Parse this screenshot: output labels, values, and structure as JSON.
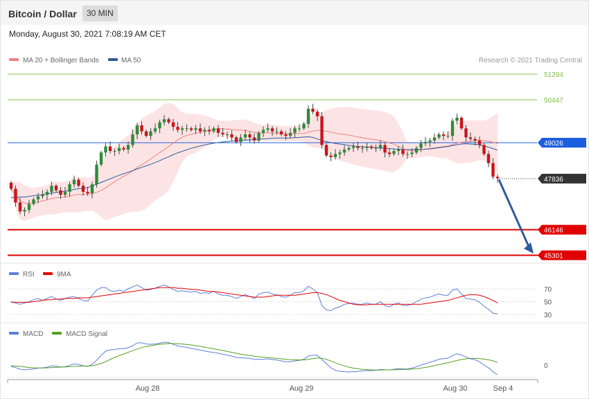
{
  "header": {
    "title": "Bitcoin / Dollar",
    "timeframe": "30 MIN",
    "datetime": "Monday, August 30, 2021 7:08:19 AM CET",
    "copyright": "Research © 2021 Trading Central"
  },
  "legends": {
    "price": [
      {
        "label": "MA 20 + Bollinger Bands",
        "color": "#f08080"
      },
      {
        "label": "MA 50",
        "color": "#2e5a9b"
      }
    ],
    "rsi": [
      {
        "label": "RSI",
        "color": "#5b7fd8"
      },
      {
        "label": "9MA",
        "color": "#e00000"
      }
    ],
    "macd": [
      {
        "label": "MACD",
        "color": "#5b7fd8"
      },
      {
        "label": "MACD Signal",
        "color": "#55a020"
      }
    ]
  },
  "chart_data": {
    "type": "candlestick",
    "price_levels": [
      {
        "label": "51294",
        "value": 51294,
        "style": "target",
        "color": "#86c04a"
      },
      {
        "label": "50447",
        "value": 50447,
        "style": "target",
        "color": "#86c04a"
      },
      {
        "label": "49026",
        "value": 49026,
        "style": "pivot",
        "color": "#1a5fe0"
      },
      {
        "label": "47836",
        "value": 47836,
        "style": "last",
        "color": "#333333"
      },
      {
        "label": "46146",
        "value": 46146,
        "style": "support",
        "color": "#e00000"
      },
      {
        "label": "45301",
        "value": 45301,
        "style": "support",
        "color": "#e00000"
      }
    ],
    "x_ticks": [
      "Aug 28",
      "Aug 29",
      "Aug 30",
      "Sep 4"
    ],
    "rsi_ticks": [
      70,
      50,
      30
    ],
    "macd_ticks": [
      0
    ],
    "close": [
      47500,
      47050,
      46750,
      46800,
      47000,
      47150,
      47250,
      47300,
      47400,
      47600,
      47450,
      47300,
      47400,
      47650,
      47800,
      47600,
      47400,
      47350,
      47650,
      48300,
      48700,
      48900,
      48750,
      48750,
      48850,
      48800,
      48950,
      49300,
      49600,
      49400,
      49250,
      49400,
      49500,
      49700,
      49800,
      49700,
      49550,
      49450,
      49500,
      49500,
      49450,
      49500,
      49400,
      49450,
      49400,
      49500,
      49350,
      49300,
      49300,
      49200,
      49050,
      49200,
      49300,
      49200,
      49100,
      49350,
      49450,
      49500,
      49400,
      49400,
      49300,
      49250,
      49350,
      49500,
      49500,
      49650,
      50150,
      50050,
      49900,
      48950,
      48600,
      48550,
      48650,
      48700,
      48800,
      48850,
      48900,
      48850,
      48850,
      48900,
      48850,
      48850,
      48950,
      48700,
      48650,
      48750,
      48800,
      48650,
      48650,
      48700,
      48850,
      49000,
      49050,
      49100,
      49200,
      49300,
      49250,
      49250,
      49750,
      49850,
      49500,
      49200,
      49150,
      49100,
      48950,
      48650,
      48350,
      47900,
      47850
    ],
    "ma50": [
      47200,
      47220,
      47230,
      47230,
      47250,
      47270,
      47290,
      47310,
      47330,
      47360,
      47380,
      47400,
      47420,
      47450,
      47480,
      47500,
      47510,
      47540,
      47590,
      47650,
      47710,
      47770,
      47830,
      47890,
      47950,
      48000,
      48050,
      48100,
      48160,
      48210,
      48260,
      48310,
      48370,
      48430,
      48500,
      48560,
      48630,
      48690,
      48740,
      48790,
      48840,
      48880,
      48920,
      48950,
      48980,
      49010,
      49030,
      49050,
      49060,
      49080,
      49090,
      49100,
      49110,
      49120,
      49130,
      49140,
      49150,
      49160,
      49170,
      49180,
      49180,
      49180,
      49180,
      49190,
      49200,
      49210,
      49220,
      49200,
      49150,
      49100,
      49060,
      49030,
      49000,
      48980,
      48960,
      48940,
      48920,
      48900,
      48890,
      48880,
      48870,
      48860,
      48850,
      48840,
      48830,
      48820,
      48810,
      48800,
      48800,
      48800,
      48800,
      48800,
      48810,
      48820,
      48840,
      48860,
      48880,
      48900,
      48930,
      48960,
      48980,
      48990,
      48980,
      48970,
      48950,
      48920,
      48880,
      48830,
      48780
    ],
    "rsi": [
      50,
      48,
      46,
      48,
      50,
      53,
      55,
      52,
      55,
      58,
      54,
      52,
      55,
      57,
      58,
      55,
      52,
      51,
      60,
      68,
      72,
      72,
      67,
      66,
      68,
      66,
      70,
      73,
      76,
      72,
      68,
      69,
      71,
      74,
      76,
      73,
      69,
      66,
      67,
      66,
      65,
      66,
      63,
      64,
      63,
      66,
      62,
      60,
      60,
      58,
      55,
      58,
      61,
      58,
      55,
      62,
      64,
      65,
      62,
      61,
      58,
      57,
      60,
      64,
      64,
      67,
      74,
      70,
      64,
      44,
      37,
      36,
      40,
      42,
      46,
      47,
      48,
      46,
      46,
      48,
      46,
      46,
      50,
      44,
      42,
      46,
      48,
      44,
      44,
      46,
      50,
      54,
      56,
      57,
      60,
      62,
      60,
      60,
      68,
      70,
      62,
      55,
      54,
      53,
      49,
      43,
      38,
      32,
      31
    ],
    "rsi_ma": [
      49,
      49,
      49,
      49,
      49,
      50,
      51,
      52,
      53,
      53,
      54,
      54,
      55,
      55,
      55,
      56,
      56,
      56,
      57,
      58,
      59,
      60,
      61,
      62,
      63,
      64,
      65,
      66,
      67,
      68,
      69,
      70,
      71,
      72,
      72,
      72,
      72,
      71,
      71,
      70,
      69,
      69,
      68,
      67,
      66,
      66,
      65,
      64,
      63,
      62,
      61,
      60,
      59,
      58,
      57,
      57,
      57,
      58,
      59,
      60,
      60,
      60,
      60,
      60,
      61,
      62,
      63,
      64,
      64,
      63,
      61,
      58,
      55,
      52,
      50,
      48,
      46,
      45,
      45,
      45,
      46,
      46,
      46,
      46,
      46,
      46,
      46,
      46,
      46,
      46,
      46,
      46,
      47,
      48,
      49,
      50,
      51,
      52,
      54,
      56,
      58,
      60,
      61,
      61,
      60,
      58,
      55,
      52,
      48
    ],
    "macd": [
      -10,
      -18,
      -30,
      -35,
      -32,
      -28,
      -22,
      -20,
      -15,
      -5,
      -8,
      -14,
      -12,
      -2,
      8,
      5,
      -5,
      -10,
      5,
      35,
      70,
      100,
      110,
      112,
      118,
      118,
      125,
      140,
      160,
      160,
      152,
      150,
      152,
      158,
      165,
      162,
      150,
      138,
      132,
      128,
      120,
      115,
      108,
      102,
      95,
      92,
      85,
      78,
      72,
      65,
      55,
      52,
      52,
      48,
      40,
      42,
      42,
      45,
      40,
      36,
      30,
      24,
      24,
      30,
      34,
      42,
      65,
      72,
      70,
      40,
      10,
      -20,
      -38,
      -45,
      -48,
      -50,
      -48,
      -46,
      -42,
      -40,
      -40,
      -38,
      -32,
      -34,
      -36,
      -30,
      -26,
      -28,
      -28,
      -22,
      -12,
      0,
      10,
      20,
      30,
      42,
      46,
      50,
      68,
      82,
      72,
      58,
      45,
      38,
      24,
      0,
      -20,
      -48,
      -70
    ],
    "macd_signal": [
      -5,
      -7,
      -10,
      -14,
      -18,
      -20,
      -21,
      -21,
      -20,
      -18,
      -16,
      -15,
      -14,
      -12,
      -10,
      -8,
      -7,
      -7,
      -5,
      2,
      12,
      25,
      40,
      55,
      68,
      80,
      92,
      104,
      116,
      126,
      134,
      140,
      145,
      150,
      153,
      155,
      155,
      154,
      152,
      149,
      145,
      140,
      135,
      129,
      123,
      117,
      111,
      105,
      98,
      92,
      85,
      79,
      74,
      69,
      64,
      60,
      57,
      54,
      51,
      48,
      45,
      42,
      39,
      38,
      37,
      37,
      41,
      46,
      51,
      49,
      41,
      29,
      16,
      4,
      -6,
      -15,
      -22,
      -27,
      -31,
      -33,
      -35,
      -36,
      -36,
      -35,
      -35,
      -34,
      -33,
      -32,
      -31,
      -29,
      -26,
      -22,
      -17,
      -11,
      -4,
      3,
      10,
      17,
      25,
      33,
      40,
      45,
      48,
      49,
      47,
      43,
      38,
      30,
      19
    ]
  }
}
